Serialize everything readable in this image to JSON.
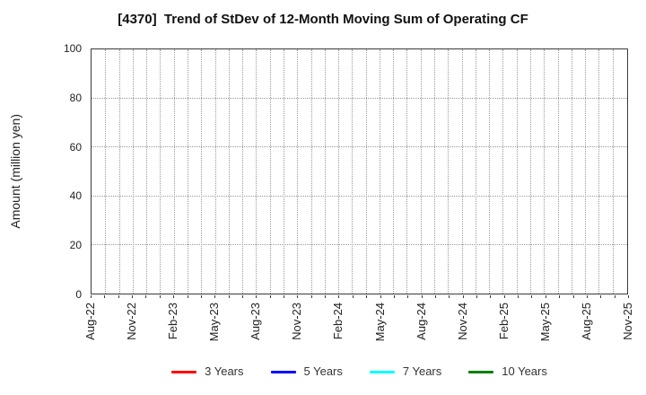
{
  "chart_data": {
    "type": "line",
    "title": "[4370]  Trend of StDev of 12-Month Moving Sum of Operating CF",
    "xlabel": "",
    "ylabel": "Amount (million yen)",
    "ylim": [
      0,
      100
    ],
    "yticks": [
      0,
      20,
      40,
      60,
      80,
      100
    ],
    "x_tick_labels": [
      "Aug-22",
      "Nov-22",
      "Feb-23",
      "May-23",
      "Aug-23",
      "Nov-23",
      "Feb-24",
      "May-24",
      "Aug-24",
      "Nov-24",
      "Feb-25",
      "May-25",
      "Aug-25",
      "Nov-25"
    ],
    "x_months_between_labeled_ticks": 3,
    "x_total_months": 39,
    "grid": {
      "on": true,
      "style": "dotted",
      "color": "#9a9a9a",
      "vertical_interval": "monthly",
      "horizontal_at": [
        20,
        40,
        60,
        80
      ]
    },
    "legend": {
      "position": "bottom",
      "entries": [
        {
          "label": "3 Years",
          "color": "#ff0000"
        },
        {
          "label": "5 Years",
          "color": "#0000ff"
        },
        {
          "label": "7 Years",
          "color": "#00ffff"
        },
        {
          "label": "10 Years",
          "color": "#007f00"
        }
      ]
    },
    "series": [
      {
        "name": "3 Years",
        "color": "#ff0000",
        "values": []
      },
      {
        "name": "5 Years",
        "color": "#0000ff",
        "values": []
      },
      {
        "name": "7 Years",
        "color": "#00ffff",
        "values": []
      },
      {
        "name": "10 Years",
        "color": "#007f00",
        "values": []
      }
    ]
  }
}
